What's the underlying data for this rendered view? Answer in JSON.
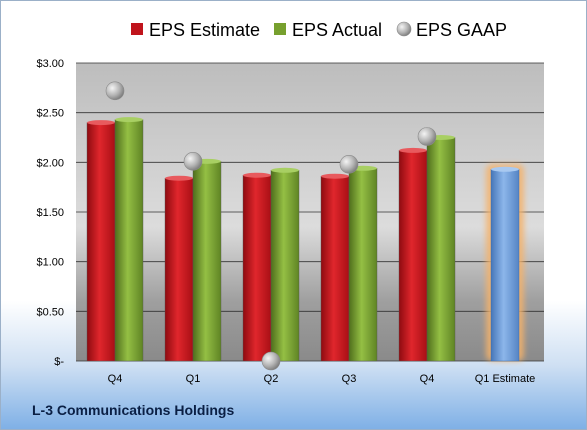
{
  "chart_data": {
    "type": "bar",
    "title": "L-3 Communications Holdings",
    "categories": [
      "Q4",
      "Q1",
      "Q2",
      "Q3",
      "Q4",
      "Q1 Estimate"
    ],
    "series": [
      {
        "name": "EPS Estimate",
        "color": "#c0141c",
        "values": [
          2.4,
          1.84,
          1.87,
          1.86,
          2.12,
          null
        ]
      },
      {
        "name": "EPS Actual",
        "color": "#77a02e",
        "values": [
          2.43,
          2.01,
          1.92,
          1.94,
          2.25,
          null
        ]
      },
      {
        "name": "EPS GAAP",
        "color": "#a8a8a8",
        "marker": "circle",
        "values": [
          2.72,
          2.01,
          0.0,
          1.98,
          2.26,
          null
        ]
      }
    ],
    "estimate": {
      "category": "Q1 Estimate",
      "value": 1.93,
      "color": "#6b9ad8",
      "glow": "#f5b26b"
    },
    "yticks": [
      "$-",
      "$0.50",
      "$1.00",
      "$1.50",
      "$2.00",
      "$2.50",
      "$3.00"
    ],
    "ylim": [
      0,
      3
    ],
    "grid": true,
    "legend_position": "top"
  }
}
